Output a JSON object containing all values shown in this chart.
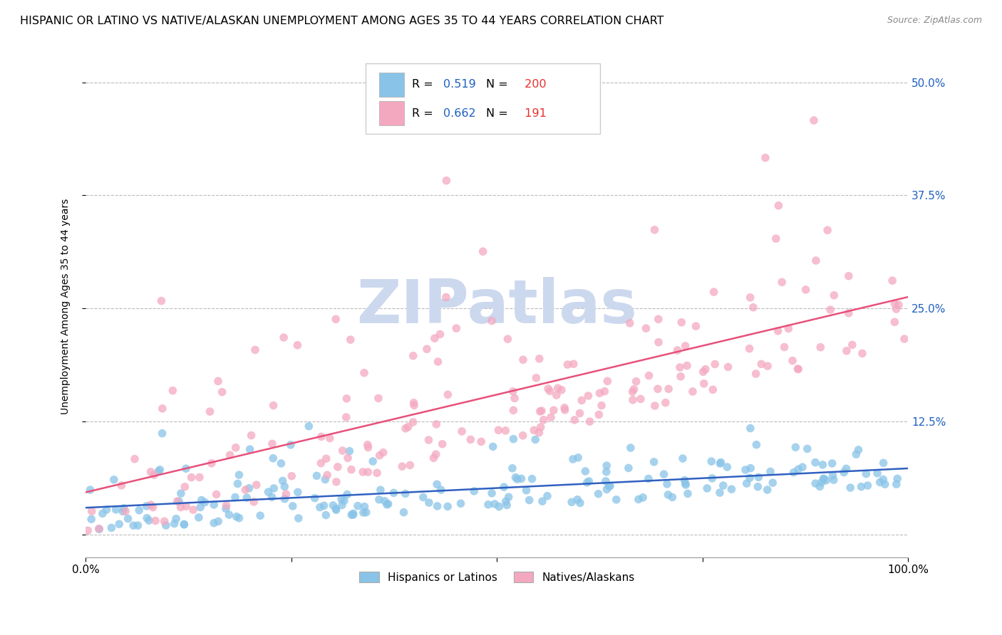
{
  "title": "HISPANIC OR LATINO VS NATIVE/ALASKAN UNEMPLOYMENT AMONG AGES 35 TO 44 YEARS CORRELATION CHART",
  "source": "Source: ZipAtlas.com",
  "ylabel": "Unemployment Among Ages 35 to 44 years",
  "xlim": [
    0,
    1
  ],
  "ylim": [
    -0.025,
    0.53
  ],
  "x_ticks": [
    0,
    0.25,
    0.5,
    0.75,
    1.0
  ],
  "x_tick_labels": [
    "0.0%",
    "",
    "",
    "",
    "100.0%"
  ],
  "y_ticks": [
    0,
    0.125,
    0.25,
    0.375,
    0.5
  ],
  "y_tick_labels": [
    "",
    "12.5%",
    "25.0%",
    "37.5%",
    "50.0%"
  ],
  "legend_labels": [
    "Hispanics or Latinos",
    "Natives/Alaskans"
  ],
  "blue_color": "#89c4e8",
  "pink_color": "#f4a8c0",
  "blue_line_color": "#3060c0",
  "pink_line_color": "#e8507a",
  "R_blue": 0.519,
  "N_blue": 200,
  "R_pink": 0.662,
  "N_pink": 191,
  "legend_R_color": "#2060c0",
  "legend_N_color": "#e83030",
  "background_color": "#ffffff",
  "grid_color": "#bbbbbb",
  "title_fontsize": 11.5,
  "axis_label_fontsize": 10,
  "tick_fontsize": 11,
  "watermark_color": "#ccd8ee",
  "seed_blue": 42,
  "seed_pink": 123
}
